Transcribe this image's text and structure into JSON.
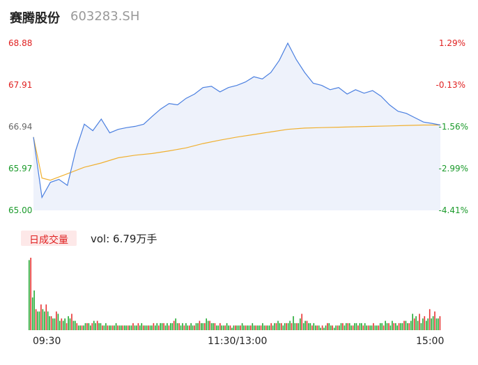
{
  "header": {
    "name": "赛腾股份",
    "code": "603283.SH"
  },
  "price_axis": [
    "68.88",
    "67.91",
    "66.94",
    "65.97",
    "65.00"
  ],
  "pct_axis": [
    "1.29%",
    "-0.13%",
    "-1.56%",
    "-2.99%",
    "-4.41%"
  ],
  "volume": {
    "tag": "日成交量",
    "label": "vol: 6.79万手"
  },
  "time_ticks": [
    "09:30",
    "11:30/13:00",
    "15:00"
  ],
  "colors": {
    "price": "#4a7fe0",
    "avg": "#f0b030",
    "up": "#e83030",
    "down": "#22aa33"
  },
  "chart_data": [
    {
      "type": "line",
      "title": "",
      "x_axis": [
        "09:30",
        "11:30/13:00",
        "15:00"
      ],
      "y_range": [
        65.0,
        68.88
      ],
      "series": [
        {
          "x": [
            0,
            5,
            10,
            15,
            20,
            25,
            30,
            35,
            40,
            45,
            50,
            55,
            60,
            65,
            70,
            75,
            80,
            85,
            90,
            95,
            100,
            105,
            110,
            115,
            120,
            125,
            130,
            135,
            140,
            145,
            150,
            155,
            160,
            165,
            170,
            175,
            180,
            185,
            190,
            195,
            200,
            205,
            210,
            215,
            220,
            225,
            230,
            235,
            240
          ],
          "values": [
            66.7,
            65.3,
            65.65,
            65.72,
            65.58,
            66.4,
            67.0,
            66.85,
            67.12,
            66.8,
            66.88,
            66.92,
            66.95,
            67.0,
            67.18,
            67.35,
            67.48,
            67.45,
            67.6,
            67.7,
            67.85,
            67.88,
            67.75,
            67.85,
            67.9,
            67.98,
            68.1,
            68.05,
            68.2,
            68.48,
            68.88,
            68.5,
            68.2,
            67.95,
            67.9,
            67.8,
            67.85,
            67.7,
            67.8,
            67.72,
            67.78,
            67.65,
            67.45,
            67.3,
            67.25,
            67.15,
            67.05,
            67.02,
            66.98
          ]
        },
        {
          "x": [
            0,
            5,
            10,
            20,
            30,
            40,
            50,
            60,
            70,
            80,
            90,
            100,
            110,
            120,
            130,
            140,
            150,
            160,
            170,
            180,
            190,
            200,
            210,
            220,
            230,
            240
          ],
          "values": [
            66.7,
            65.75,
            65.7,
            65.85,
            66.0,
            66.1,
            66.22,
            66.28,
            66.32,
            66.38,
            66.45,
            66.55,
            66.63,
            66.7,
            66.76,
            66.82,
            66.88,
            66.91,
            66.92,
            66.93,
            66.94,
            66.95,
            66.96,
            66.97,
            66.98,
            66.98
          ]
        }
      ]
    },
    {
      "type": "bar",
      "title": "",
      "values": [
        30,
        31,
        14,
        17,
        9,
        8,
        8,
        11,
        9,
        8,
        11,
        8,
        6,
        6,
        5,
        5,
        8,
        7,
        4,
        5,
        4,
        5,
        3,
        6,
        5,
        7,
        4,
        4,
        3,
        2,
        2,
        2,
        2,
        3,
        3,
        3,
        2,
        3,
        4,
        3,
        4,
        3,
        3,
        2,
        2,
        3,
        2,
        2,
        2,
        2,
        2,
        3,
        2,
        2,
        2,
        2,
        2,
        2,
        2,
        2,
        2,
        3,
        2,
        2,
        3,
        2,
        3,
        2,
        2,
        2,
        2,
        2,
        2,
        3,
        2,
        3,
        2,
        3,
        3,
        3,
        2,
        3,
        2,
        3,
        3,
        4,
        5,
        3,
        3,
        2,
        3,
        2,
        3,
        2,
        2,
        3,
        2,
        2,
        3,
        3,
        4,
        3,
        3,
        3,
        5,
        4,
        4,
        3,
        3,
        3,
        2,
        2,
        3,
        2,
        2,
        2,
        3,
        2,
        2,
        1,
        2,
        2,
        2,
        2,
        2,
        3,
        2,
        2,
        2,
        2,
        2,
        3,
        2,
        2,
        2,
        2,
        2,
        3,
        2,
        2,
        2,
        2,
        3,
        2,
        3,
        3,
        4,
        3,
        3,
        2,
        3,
        3,
        3,
        4,
        3,
        6,
        3,
        3,
        3,
        5,
        7,
        3,
        4,
        4,
        3,
        3,
        2,
        3,
        2,
        2,
        2,
        1,
        2,
        1,
        2,
        3,
        3,
        2,
        2,
        1,
        2,
        2,
        2,
        3,
        3,
        2,
        3,
        3,
        3,
        2,
        2,
        3,
        3,
        2,
        3,
        3,
        2,
        3,
        2,
        2,
        2,
        2,
        3,
        2,
        2,
        2,
        3,
        3,
        2,
        4,
        3,
        3,
        2,
        4,
        3,
        3,
        2,
        3,
        3,
        3,
        4,
        4,
        3,
        3,
        4,
        7,
        5,
        6,
        4,
        7,
        3,
        5,
        6,
        4,
        5,
        9,
        5,
        6,
        8,
        5,
        5,
        6
      ]
    }
  ]
}
